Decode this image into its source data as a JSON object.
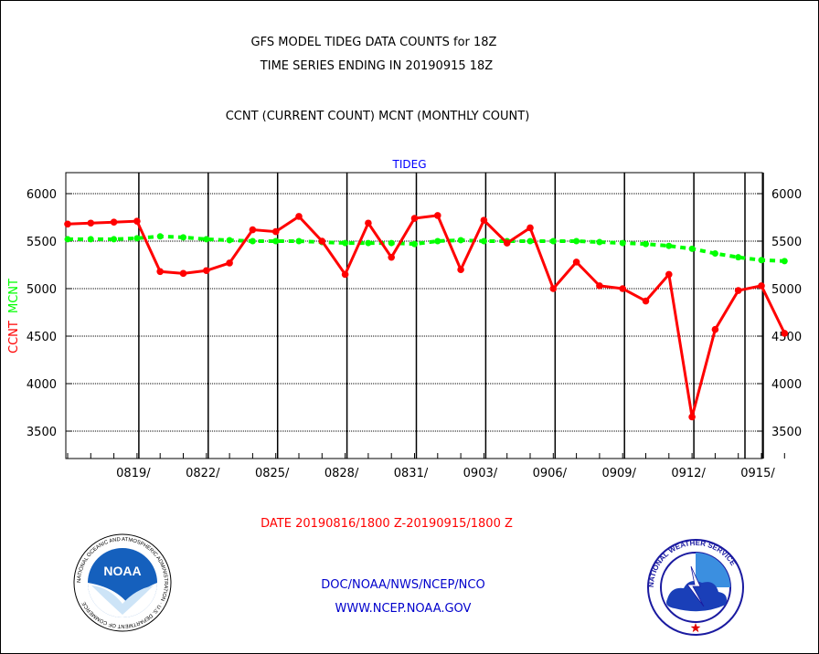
{
  "header": {
    "title_line1": "GFS MODEL TIDEG DATA COUNTS for 18Z",
    "title_line2": "TIME SERIES ENDING IN 20190915 18Z",
    "subtitle": "CCNT (CURRENT COUNT) MCNT (MONTHLY COUNT)"
  },
  "footer": {
    "date_range": "DATE 20190816/1800 Z-20190915/1800 Z",
    "org_line": "DOC/NOAA/NWS/NCEP/NCO",
    "url_line": "WWW.NCEP.NOAA.GOV"
  },
  "logos": {
    "noaa": {
      "text": "NOAA",
      "ring_text": "NATIONAL OCEANIC AND ATMOSPHERIC ADMINISTRATION · U.S. DEPARTMENT OF COMMERCE"
    },
    "nws": {
      "ring_text": "NATIONAL WEATHER SERVICE"
    }
  },
  "colors": {
    "ccnt": "#ff0000",
    "mcnt": "#00ff00",
    "title": "#000000",
    "footer_blue": "#0000cc",
    "date_red": "#ff0000",
    "plot_label": "#0000ff"
  },
  "chart_data": {
    "type": "line",
    "title": "TIDEG",
    "ylabel_left": [
      "CCNT",
      "MCNT"
    ],
    "x_ticks": [
      "0819/",
      "0822/",
      "0825/",
      "0828/",
      "0831/",
      "0903/",
      "0906/",
      "0909/",
      "0912/",
      "0915/"
    ],
    "y_ticks": [
      3500,
      4000,
      4500,
      5000,
      5500,
      6000
    ],
    "ylim": [
      3250,
      6200
    ],
    "x_dates": [
      "0816",
      "0817",
      "0818",
      "0819",
      "0820",
      "0821",
      "0822",
      "0823",
      "0824",
      "0825",
      "0826",
      "0827",
      "0828",
      "0829",
      "0830",
      "0831",
      "0901",
      "0902",
      "0903",
      "0904",
      "0905",
      "0906",
      "0907",
      "0908",
      "0909",
      "0910",
      "0911",
      "0912",
      "0913",
      "0914",
      "0915",
      "0916"
    ],
    "series": [
      {
        "name": "CCNT",
        "color": "#ff0000",
        "values": [
          5680,
          5690,
          5700,
          5710,
          5180,
          5160,
          5190,
          5270,
          5620,
          5600,
          5760,
          5500,
          5150,
          5690,
          5330,
          5740,
          5770,
          5200,
          5720,
          5480,
          5640,
          5000,
          5280,
          5030,
          5000,
          4870,
          5150,
          3650,
          4570,
          4980,
          5030,
          4530
        ]
      },
      {
        "name": "MCNT",
        "color": "#00ff00",
        "values": [
          5520,
          5520,
          5520,
          5530,
          5550,
          5540,
          5520,
          5510,
          5500,
          5500,
          5500,
          5490,
          5480,
          5480,
          5480,
          5470,
          5500,
          5510,
          5500,
          5500,
          5500,
          5500,
          5500,
          5490,
          5480,
          5470,
          5450,
          5420,
          5370,
          5330,
          5300,
          5290
        ]
      }
    ],
    "grid": true
  }
}
